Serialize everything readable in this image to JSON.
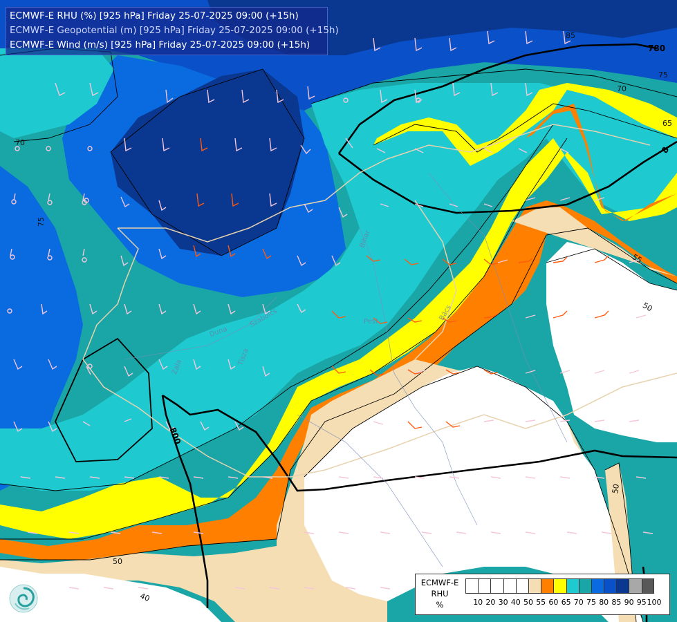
{
  "title": {
    "line1": "ECMWF-E RHU (%) [925 hPa] Friday 25-07-2025 09:00 (+15h)",
    "line2": "ECMWF-E Geopotential (m) [925 hPa] Friday 25-07-2025 09:00 (+15h)",
    "line3": "ECMWF-E Wind (m/s) [925 hPa] Friday 25-07-2025 09:00 (+15h)"
  },
  "legend": {
    "caption": [
      "ECMWF-E",
      "RHU",
      "%"
    ],
    "colors": [
      "#ffffff",
      "#ffffff",
      "#ffffff",
      "#ffffff",
      "#ffffff",
      "#f5deb3",
      "#ff8000",
      "#ffff00",
      "#1ecad0",
      "#1aa6a6",
      "#0a6ae0",
      "#0a50c8",
      "#0a3890",
      "#a8a8a8",
      "#585858"
    ],
    "ticks": [
      "10",
      "20",
      "30",
      "40",
      "50",
      "55",
      "60",
      "65",
      "70",
      "75",
      "80",
      "85",
      "90",
      "95",
      "100"
    ]
  },
  "contour_labels": {
    "rhu": [
      {
        "text": "85",
        "color": "#000000"
      },
      {
        "text": "75",
        "color": "#000000"
      },
      {
        "text": "70",
        "color": "#000000"
      },
      {
        "text": "65",
        "color": "#000000"
      },
      {
        "text": "70",
        "color": "#000000"
      },
      {
        "text": "75",
        "color": "#000000"
      },
      {
        "text": "55",
        "color": "#000000"
      },
      {
        "text": "50",
        "color": "#000000"
      },
      {
        "text": "50",
        "color": "#000000"
      },
      {
        "text": "50",
        "color": "#000000"
      },
      {
        "text": "40",
        "color": "#000000"
      },
      {
        "text": "55",
        "color": "#000000"
      }
    ],
    "geopotential": [
      "780",
      "800",
      "8"
    ]
  },
  "place_labels": [
    "Pest",
    "Tisza",
    "Duna",
    "Zala",
    "Bács",
    "Bihar",
    "Szabolcs"
  ],
  "logo": {
    "icon": "ecmwf-swirl-logo-icon"
  }
}
